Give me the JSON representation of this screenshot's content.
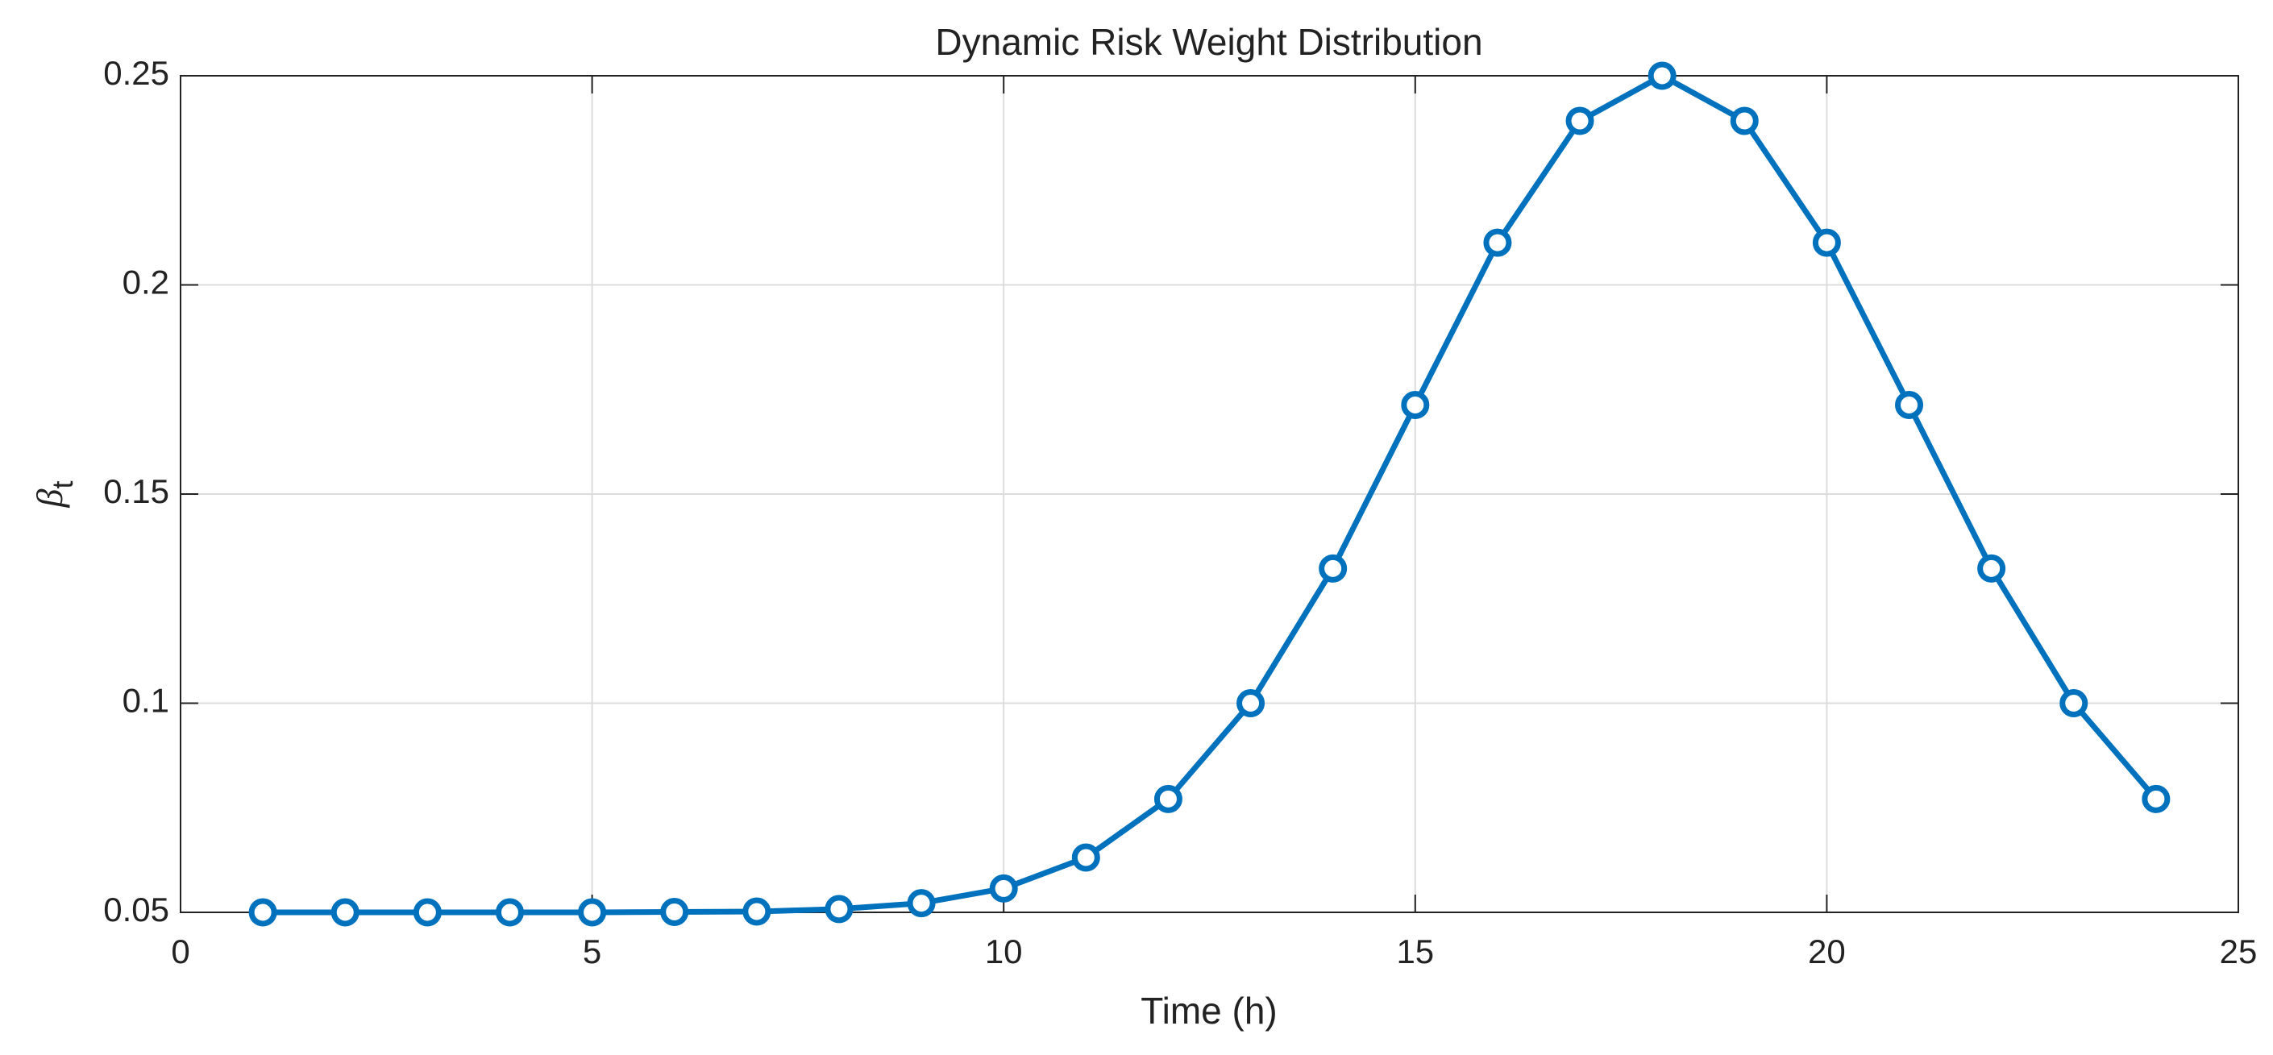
{
  "chart_data": {
    "type": "line",
    "title": "Dynamic Risk Weight Distribution",
    "xlabel": "Time (h)",
    "ylabel": [
      "β",
      "t"
    ],
    "x": [
      1,
      2,
      3,
      4,
      5,
      6,
      7,
      8,
      9,
      10,
      11,
      12,
      13,
      14,
      15,
      16,
      17,
      18,
      19,
      20,
      21,
      22,
      23,
      24
    ],
    "series": [
      {
        "color": "#0072bd",
        "marker": "o",
        "values": [
          0.05,
          0.05,
          0.05,
          0.05,
          0.05,
          0.0501,
          0.0502,
          0.0508,
          0.0522,
          0.0557,
          0.0631,
          0.0771,
          0.1,
          0.1322,
          0.1713,
          0.2101,
          0.2392,
          0.25,
          0.2392,
          0.2101,
          0.1713,
          0.1322,
          0.1,
          0.0771
        ]
      }
    ],
    "xlim": [
      0,
      25
    ],
    "xticks": [
      0,
      5,
      10,
      15,
      20,
      25
    ],
    "ylim": [
      0.05,
      0.25
    ],
    "yticks": [
      0.05,
      0.1,
      0.15,
      0.2,
      0.25
    ],
    "grid": true
  }
}
